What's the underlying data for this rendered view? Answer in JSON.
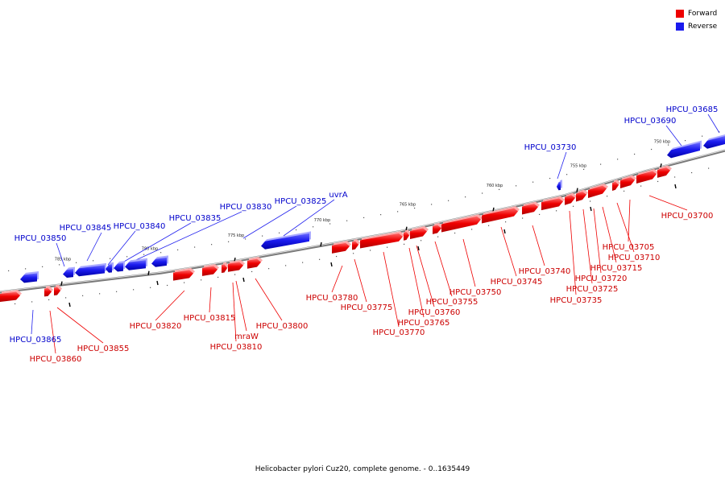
{
  "caption": "Helicobacter pylori Cuz20, complete genome. - 0..1635449",
  "legend": {
    "forward_label": "Forward",
    "reverse_label": "Reverse",
    "forward_color": "#ee0000",
    "reverse_color": "#1a1aee"
  },
  "scale": {
    "ticks": [
      "750 kbp",
      "755 kbp",
      "760 kbp",
      "765 kbp",
      "770 kbp",
      "775 kbp",
      "780 kbp",
      "785 kbp"
    ]
  },
  "forward_genes": [
    "HPCU_03700",
    "HPCU_03705",
    "HPCU_03710",
    "HPCU_03715",
    "HPCU_03720",
    "HPCU_03725",
    "HPCU_03735",
    "HPCU_03740",
    "HPCU_03745",
    "HPCU_03750",
    "HPCU_03755",
    "HPCU_03760",
    "HPCU_03765",
    "HPCU_03770",
    "HPCU_03775",
    "HPCU_03780",
    "HPCU_03800",
    "mraW",
    "HPCU_03810",
    "HPCU_03815",
    "HPCU_03820",
    "HPCU_03855",
    "HPCU_03860"
  ],
  "reverse_genes": [
    "HPCU_03685",
    "HPCU_03690",
    "HPCU_03730",
    "uvrA",
    "HPCU_03825",
    "HPCU_03830",
    "HPCU_03835",
    "HPCU_03840",
    "HPCU_03845",
    "HPCU_03850",
    "HPCU_03865"
  ]
}
